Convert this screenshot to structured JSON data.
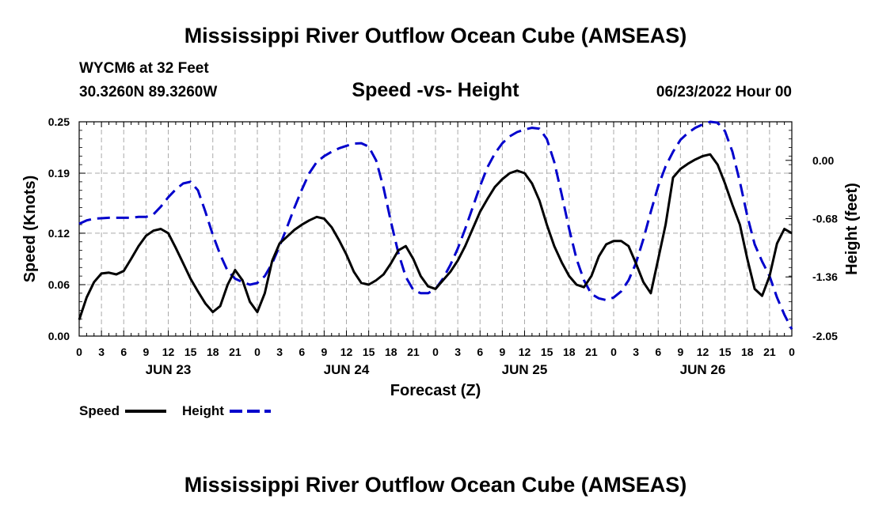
{
  "header": {
    "title": "Mississippi River Outflow Ocean Cube (AMSEAS)",
    "station": "WYCM6 at 32 Feet",
    "coords": "30.3260N  89.3260W",
    "subtitle": "Speed -vs- Height",
    "datetime": "06/23/2022 Hour 00",
    "footer_title": "Mississippi River Outflow Ocean Cube (AMSEAS)"
  },
  "colors": {
    "speed": "#000000",
    "height": "#0000cc",
    "grid": "#aaaaaa"
  },
  "chart_data": {
    "type": "line",
    "xlabel": "Forecast (Z)",
    "ylabel_left": "Speed (Knots)",
    "ylabel_right": "Height (feet)",
    "x_range": [
      0,
      96
    ],
    "y_left_range": [
      0,
      0.25
    ],
    "y_right_range": [
      -2.05,
      0.45
    ],
    "y_left_ticks": [
      "0.25",
      "0.19",
      "0.12",
      "0.06",
      "0.00"
    ],
    "y_right_ticks": [
      "0.00",
      "-0.68",
      "-1.36",
      "-2.05"
    ],
    "x_tick_labels": [
      "0",
      "3",
      "6",
      "9",
      "12",
      "15",
      "18",
      "21",
      "0",
      "3",
      "6",
      "9",
      "12",
      "15",
      "18",
      "21",
      "0",
      "3",
      "6",
      "9",
      "12",
      "15",
      "18",
      "21",
      "0",
      "3",
      "6",
      "9",
      "12",
      "15",
      "18",
      "21",
      "0"
    ],
    "day_labels": [
      "JUN 23",
      "JUN 24",
      "JUN 25",
      "JUN 26"
    ],
    "legend": [
      {
        "name": "Speed",
        "key": "speed",
        "dashed": false
      },
      {
        "name": "Height",
        "key": "height",
        "dashed": true
      }
    ],
    "series": [
      {
        "name": "Speed",
        "units": "knots",
        "points": [
          [
            0,
            0.019
          ],
          [
            1,
            0.045
          ],
          [
            2,
            0.063
          ],
          [
            3,
            0.073
          ],
          [
            4,
            0.074
          ],
          [
            5,
            0.072
          ],
          [
            6,
            0.076
          ],
          [
            7,
            0.09
          ],
          [
            8,
            0.105
          ],
          [
            9,
            0.117
          ],
          [
            10,
            0.123
          ],
          [
            11,
            0.125
          ],
          [
            12,
            0.12
          ],
          [
            13,
            0.103
          ],
          [
            14,
            0.085
          ],
          [
            15,
            0.067
          ],
          [
            16,
            0.052
          ],
          [
            17,
            0.038
          ],
          [
            18,
            0.028
          ],
          [
            19,
            0.035
          ],
          [
            20,
            0.06
          ],
          [
            21,
            0.077
          ],
          [
            22,
            0.065
          ],
          [
            23,
            0.04
          ],
          [
            24,
            0.028
          ],
          [
            25,
            0.05
          ],
          [
            26,
            0.088
          ],
          [
            27,
            0.108
          ],
          [
            28,
            0.116
          ],
          [
            29,
            0.124
          ],
          [
            30,
            0.13
          ],
          [
            31,
            0.135
          ],
          [
            32,
            0.139
          ],
          [
            33,
            0.137
          ],
          [
            34,
            0.127
          ],
          [
            35,
            0.112
          ],
          [
            36,
            0.095
          ],
          [
            37,
            0.075
          ],
          [
            38,
            0.062
          ],
          [
            39,
            0.06
          ],
          [
            40,
            0.065
          ],
          [
            41,
            0.072
          ],
          [
            42,
            0.085
          ],
          [
            43,
            0.1
          ],
          [
            44,
            0.105
          ],
          [
            45,
            0.09
          ],
          [
            46,
            0.07
          ],
          [
            47,
            0.058
          ],
          [
            48,
            0.055
          ],
          [
            49,
            0.065
          ],
          [
            50,
            0.075
          ],
          [
            51,
            0.088
          ],
          [
            52,
            0.105
          ],
          [
            53,
            0.125
          ],
          [
            54,
            0.145
          ],
          [
            55,
            0.16
          ],
          [
            56,
            0.174
          ],
          [
            57,
            0.183
          ],
          [
            58,
            0.19
          ],
          [
            59,
            0.193
          ],
          [
            60,
            0.19
          ],
          [
            61,
            0.178
          ],
          [
            62,
            0.158
          ],
          [
            63,
            0.13
          ],
          [
            64,
            0.105
          ],
          [
            65,
            0.086
          ],
          [
            66,
            0.07
          ],
          [
            67,
            0.06
          ],
          [
            68,
            0.057
          ],
          [
            69,
            0.07
          ],
          [
            70,
            0.093
          ],
          [
            71,
            0.107
          ],
          [
            72,
            0.111
          ],
          [
            73,
            0.111
          ],
          [
            74,
            0.105
          ],
          [
            75,
            0.085
          ],
          [
            76,
            0.063
          ],
          [
            77,
            0.05
          ],
          [
            78,
            0.09
          ],
          [
            79,
            0.13
          ],
          [
            80,
            0.185
          ],
          [
            81,
            0.195
          ],
          [
            82,
            0.201
          ],
          [
            83,
            0.206
          ],
          [
            84,
            0.21
          ],
          [
            85,
            0.212
          ],
          [
            86,
            0.2
          ],
          [
            87,
            0.178
          ],
          [
            88,
            0.153
          ],
          [
            89,
            0.13
          ],
          [
            90,
            0.09
          ],
          [
            91,
            0.055
          ],
          [
            92,
            0.047
          ],
          [
            93,
            0.07
          ],
          [
            94,
            0.108
          ],
          [
            95,
            0.125
          ],
          [
            96,
            0.12
          ]
        ]
      },
      {
        "name": "Height",
        "units": "feet",
        "points": [
          [
            0,
            -0.74
          ],
          [
            1,
            -0.7
          ],
          [
            2,
            -0.68
          ],
          [
            3,
            -0.675
          ],
          [
            4,
            -0.67
          ],
          [
            5,
            -0.67
          ],
          [
            6,
            -0.67
          ],
          [
            7,
            -0.67
          ],
          [
            8,
            -0.66
          ],
          [
            9,
            -0.66
          ],
          [
            10,
            -0.63
          ],
          [
            11,
            -0.54
          ],
          [
            12,
            -0.43
          ],
          [
            13,
            -0.34
          ],
          [
            14,
            -0.27
          ],
          [
            15,
            -0.25
          ],
          [
            16,
            -0.35
          ],
          [
            17,
            -0.6
          ],
          [
            18,
            -0.87
          ],
          [
            19,
            -1.1
          ],
          [
            20,
            -1.29
          ],
          [
            21,
            -1.38
          ],
          [
            22,
            -1.42
          ],
          [
            23,
            -1.45
          ],
          [
            24,
            -1.43
          ],
          [
            25,
            -1.35
          ],
          [
            26,
            -1.2
          ],
          [
            27,
            -1.0
          ],
          [
            28,
            -0.78
          ],
          [
            29,
            -0.55
          ],
          [
            30,
            -0.34
          ],
          [
            31,
            -0.15
          ],
          [
            32,
            -0.02
          ],
          [
            33,
            0.05
          ],
          [
            34,
            0.1
          ],
          [
            35,
            0.14
          ],
          [
            36,
            0.17
          ],
          [
            37,
            0.195
          ],
          [
            38,
            0.2
          ],
          [
            39,
            0.16
          ],
          [
            40,
            0.0
          ],
          [
            41,
            -0.32
          ],
          [
            42,
            -0.72
          ],
          [
            43,
            -1.08
          ],
          [
            44,
            -1.36
          ],
          [
            45,
            -1.51
          ],
          [
            46,
            -1.55
          ],
          [
            47,
            -1.55
          ],
          [
            48,
            -1.5
          ],
          [
            49,
            -1.38
          ],
          [
            50,
            -1.22
          ],
          [
            51,
            -1.03
          ],
          [
            52,
            -0.8
          ],
          [
            53,
            -0.55
          ],
          [
            54,
            -0.3
          ],
          [
            55,
            -0.08
          ],
          [
            56,
            0.08
          ],
          [
            57,
            0.2
          ],
          [
            58,
            0.28
          ],
          [
            59,
            0.33
          ],
          [
            60,
            0.36
          ],
          [
            61,
            0.38
          ],
          [
            62,
            0.37
          ],
          [
            63,
            0.25
          ],
          [
            64,
            -0.02
          ],
          [
            65,
            -0.4
          ],
          [
            66,
            -0.8
          ],
          [
            67,
            -1.15
          ],
          [
            68,
            -1.4
          ],
          [
            69,
            -1.56
          ],
          [
            70,
            -1.61
          ],
          [
            71,
            -1.63
          ],
          [
            72,
            -1.6
          ],
          [
            73,
            -1.53
          ],
          [
            74,
            -1.4
          ],
          [
            75,
            -1.2
          ],
          [
            76,
            -0.92
          ],
          [
            77,
            -0.6
          ],
          [
            78,
            -0.3
          ],
          [
            79,
            -0.07
          ],
          [
            80,
            0.1
          ],
          [
            81,
            0.24
          ],
          [
            82,
            0.32
          ],
          [
            83,
            0.38
          ],
          [
            84,
            0.42
          ],
          [
            85,
            0.45
          ],
          [
            86,
            0.44
          ],
          [
            87,
            0.34
          ],
          [
            88,
            0.1
          ],
          [
            89,
            -0.25
          ],
          [
            90,
            -0.65
          ],
          [
            91,
            -0.98
          ],
          [
            92,
            -1.18
          ],
          [
            93,
            -1.35
          ],
          [
            94,
            -1.6
          ],
          [
            95,
            -1.8
          ],
          [
            96,
            -1.97
          ]
        ]
      }
    ]
  }
}
